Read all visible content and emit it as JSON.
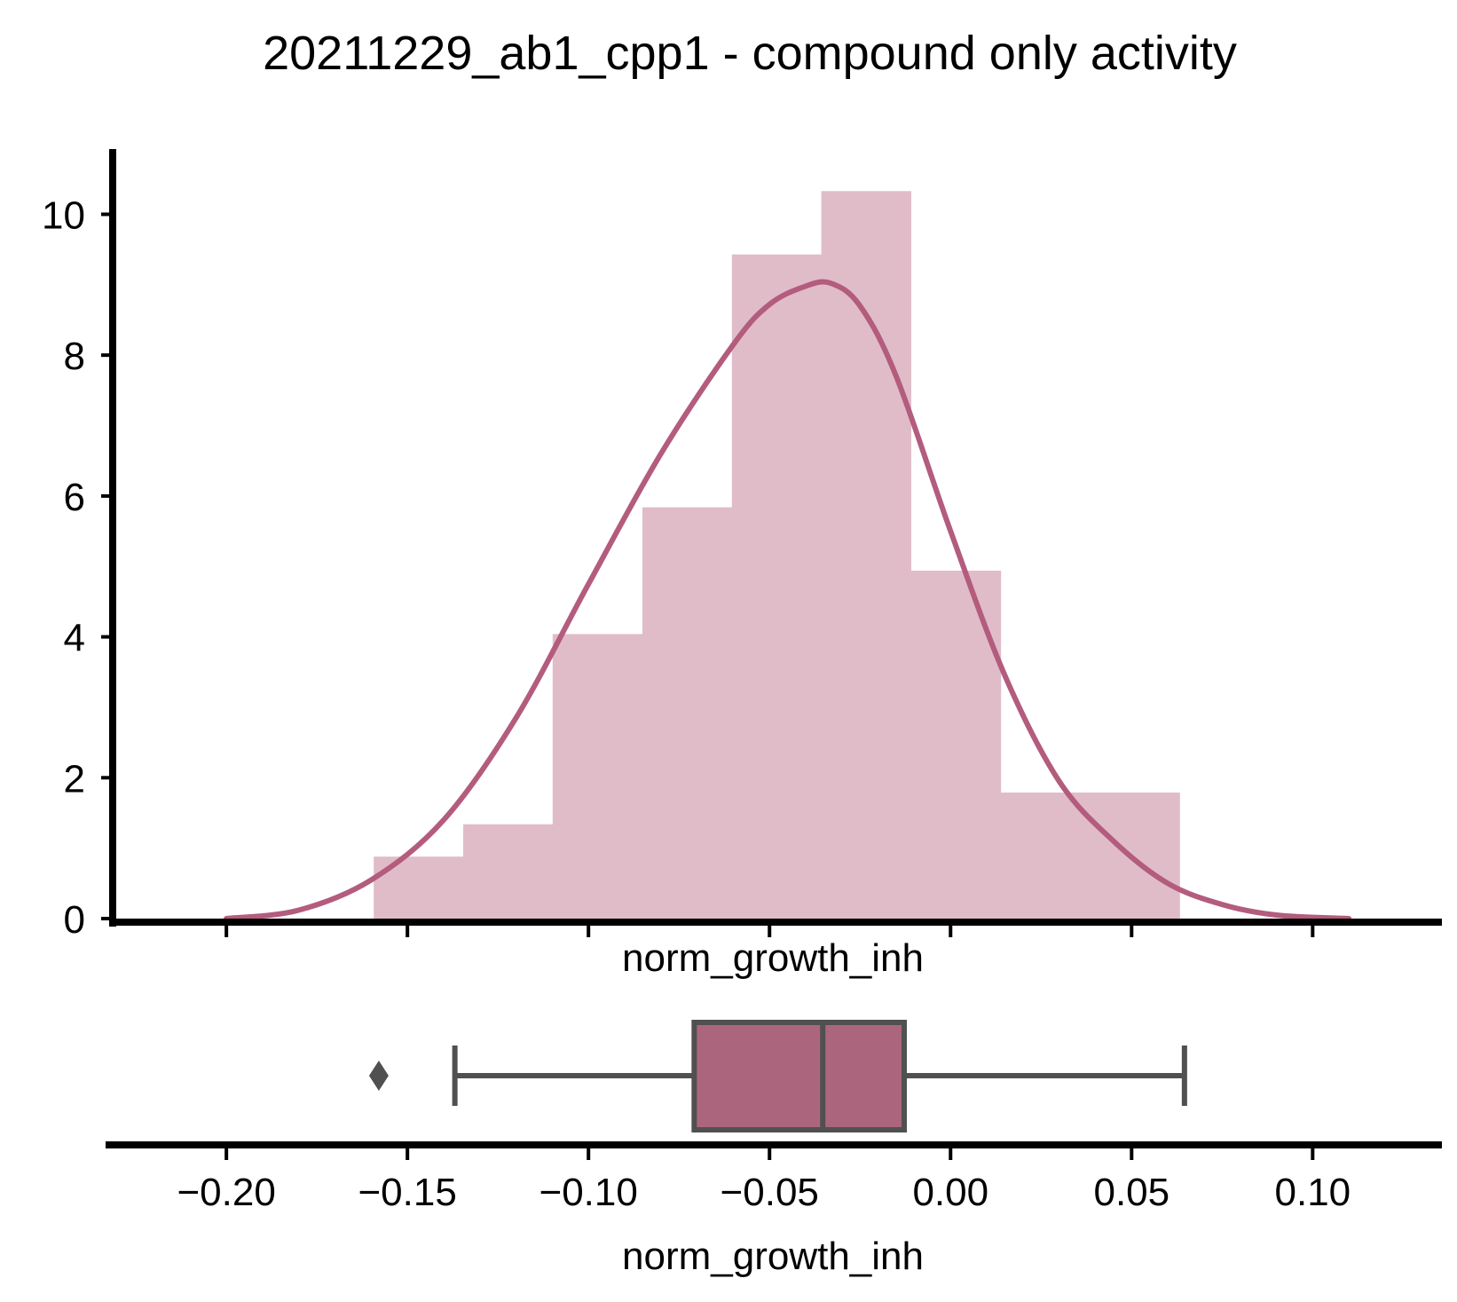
{
  "chart_data": [
    {
      "type": "histogram",
      "title": "20211229_ab1_cpp1 - compound only activity",
      "xlabel": "norm_growth_inh",
      "ylabel": "",
      "xlim": [
        -0.2314,
        0.1357
      ],
      "ylim": [
        0,
        10.85
      ],
      "yticks": [
        0,
        2,
        4,
        6,
        8,
        10
      ],
      "grid": false,
      "legend": "none",
      "bar_color": "#e0bcc8",
      "line_color": "#b35c7d",
      "bins": [
        {
          "x0": -0.1593,
          "x1": -0.1346,
          "value": 0.88
        },
        {
          "x0": -0.1346,
          "x1": -0.1099,
          "value": 1.34
        },
        {
          "x0": -0.1099,
          "x1": -0.0851,
          "value": 4.04
        },
        {
          "x0": -0.0851,
          "x1": -0.0604,
          "value": 5.84
        },
        {
          "x0": -0.0604,
          "x1": -0.0357,
          "value": 9.43
        },
        {
          "x0": -0.0357,
          "x1": -0.011,
          "value": 10.33
        },
        {
          "x0": -0.011,
          "x1": 0.0138,
          "value": 4.94
        },
        {
          "x0": 0.0138,
          "x1": 0.0385,
          "value": 1.79
        },
        {
          "x0": 0.0385,
          "x1": 0.0632,
          "value": 1.79
        }
      ],
      "kde": {
        "x": [
          -0.2,
          -0.18,
          -0.16,
          -0.14,
          -0.12,
          -0.1,
          -0.08,
          -0.06,
          -0.05,
          -0.04,
          -0.033,
          -0.025,
          -0.015,
          0.0,
          0.015,
          0.03,
          0.045,
          0.06,
          0.075,
          0.09,
          0.11
        ],
        "y": [
          0.0,
          0.12,
          0.55,
          1.4,
          2.85,
          4.75,
          6.6,
          8.15,
          8.72,
          8.98,
          9.02,
          8.7,
          7.7,
          5.5,
          3.45,
          1.95,
          1.1,
          0.5,
          0.2,
          0.05,
          0.0
        ]
      }
    },
    {
      "type": "boxplot",
      "xlabel": "norm_growth_inh",
      "xticks": [
        -0.2,
        -0.15,
        -0.1,
        -0.05,
        0.0,
        0.05,
        0.1
      ],
      "xtick_labels": [
        "−0.20",
        "−0.15",
        "−0.10",
        "−0.05",
        "0.00",
        "0.05",
        "0.10"
      ],
      "box_color": "#ab667d",
      "edge_color": "#505050",
      "whisker_low": -0.1369,
      "q1": -0.0708,
      "median": -0.0353,
      "q3": -0.0128,
      "whisker_high": 0.0646,
      "outliers": [
        -0.1579
      ]
    }
  ]
}
